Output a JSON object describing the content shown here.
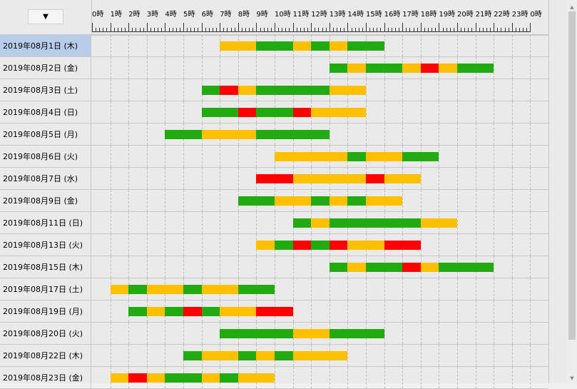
{
  "header": {
    "dropdown_icon": "▼",
    "hour_labels": [
      "0時",
      "1時",
      "2時",
      "3時",
      "4時",
      "5時",
      "6時",
      "7時",
      "8時",
      "9時",
      "10時",
      "11時",
      "12時",
      "13時",
      "14時",
      "15時",
      "16時",
      "17時",
      "18時",
      "19時",
      "20時",
      "21時",
      "22時",
      "23時",
      "0時"
    ]
  },
  "colors": {
    "G": "#22aa11",
    "Y": "#ffc000",
    "R": "#ff0000",
    "selected_row": "#b8cde9"
  },
  "rows": [
    {
      "label": "2019年08月1日 (木)",
      "selected": true,
      "segments": [
        [
          "Y",
          7,
          9
        ],
        [
          "G",
          9,
          11
        ],
        [
          "Y",
          11,
          12
        ],
        [
          "G",
          12,
          13
        ],
        [
          "Y",
          13,
          14
        ],
        [
          "G",
          14,
          16
        ]
      ]
    },
    {
      "label": "2019年08月2日 (金)",
      "segments": [
        [
          "G",
          13,
          14
        ],
        [
          "Y",
          14,
          15
        ],
        [
          "G",
          15,
          17
        ],
        [
          "Y",
          17,
          18
        ],
        [
          "R",
          18,
          19
        ],
        [
          "Y",
          19,
          20
        ],
        [
          "G",
          20,
          22
        ]
      ]
    },
    {
      "label": "2019年08月3日 (土)",
      "segments": [
        [
          "G",
          6,
          7
        ],
        [
          "R",
          7,
          8
        ],
        [
          "Y",
          8,
          9
        ],
        [
          "G",
          9,
          13
        ],
        [
          "Y",
          13,
          15
        ]
      ]
    },
    {
      "label": "2019年08月4日 (日)",
      "segments": [
        [
          "G",
          6,
          8
        ],
        [
          "R",
          8,
          9
        ],
        [
          "G",
          9,
          11
        ],
        [
          "R",
          11,
          12
        ],
        [
          "Y",
          12,
          15
        ]
      ]
    },
    {
      "label": "2019年08月5日 (月)",
      "segments": [
        [
          "G",
          4,
          6
        ],
        [
          "Y",
          6,
          9
        ],
        [
          "G",
          9,
          13
        ]
      ]
    },
    {
      "label": "2019年08月6日 (火)",
      "segments": [
        [
          "Y",
          10,
          14
        ],
        [
          "G",
          14,
          15
        ],
        [
          "Y",
          15,
          17
        ],
        [
          "G",
          17,
          19
        ]
      ]
    },
    {
      "label": "2019年08月7日 (水)",
      "segments": [
        [
          "R",
          9,
          11
        ],
        [
          "Y",
          11,
          15
        ],
        [
          "R",
          15,
          16
        ],
        [
          "Y",
          16,
          18
        ]
      ]
    },
    {
      "label": "2019年08月9日 (金)",
      "segments": [
        [
          "G",
          8,
          10
        ],
        [
          "Y",
          10,
          12
        ],
        [
          "G",
          12,
          13
        ],
        [
          "Y",
          13,
          14
        ],
        [
          "G",
          14,
          15
        ],
        [
          "Y",
          15,
          17
        ]
      ]
    },
    {
      "label": "2019年08月11日 (日)",
      "segments": [
        [
          "G",
          11,
          12
        ],
        [
          "Y",
          12,
          13
        ],
        [
          "G",
          13,
          18
        ],
        [
          "Y",
          18,
          20
        ]
      ]
    },
    {
      "label": "2019年08月13日 (火)",
      "segments": [
        [
          "Y",
          9,
          10
        ],
        [
          "G",
          10,
          11
        ],
        [
          "R",
          11,
          12
        ],
        [
          "G",
          12,
          13
        ],
        [
          "R",
          13,
          14
        ],
        [
          "Y",
          14,
          16
        ],
        [
          "R",
          16,
          18
        ]
      ]
    },
    {
      "label": "2019年08月15日 (木)",
      "segments": [
        [
          "G",
          13,
          14
        ],
        [
          "Y",
          14,
          15
        ],
        [
          "G",
          15,
          17
        ],
        [
          "R",
          17,
          18
        ],
        [
          "Y",
          18,
          19
        ],
        [
          "G",
          19,
          22
        ]
      ]
    },
    {
      "label": "2019年08月17日 (土)",
      "segments": [
        [
          "Y",
          1,
          2
        ],
        [
          "G",
          2,
          3
        ],
        [
          "Y",
          3,
          5
        ],
        [
          "G",
          5,
          6
        ],
        [
          "Y",
          6,
          8
        ],
        [
          "G",
          8,
          10
        ]
      ]
    },
    {
      "label": "2019年08月19日 (月)",
      "segments": [
        [
          "G",
          2,
          3
        ],
        [
          "Y",
          3,
          4
        ],
        [
          "G",
          4,
          5
        ],
        [
          "R",
          5,
          6
        ],
        [
          "G",
          6,
          7
        ],
        [
          "Y",
          7,
          9
        ],
        [
          "R",
          9,
          11
        ]
      ]
    },
    {
      "label": "2019年08月20日 (火)",
      "segments": [
        [
          "G",
          7,
          11
        ],
        [
          "Y",
          11,
          13
        ],
        [
          "G",
          13,
          16
        ]
      ]
    },
    {
      "label": "2019年08月22日 (木)",
      "segments": [
        [
          "G",
          5,
          6
        ],
        [
          "Y",
          6,
          8
        ],
        [
          "G",
          8,
          9
        ],
        [
          "Y",
          9,
          10
        ],
        [
          "G",
          10,
          11
        ],
        [
          "Y",
          11,
          14
        ]
      ]
    },
    {
      "label": "2019年08月23日 (金)",
      "segments": [
        [
          "Y",
          1,
          2
        ],
        [
          "R",
          2,
          3
        ],
        [
          "Y",
          3,
          4
        ],
        [
          "G",
          4,
          6
        ],
        [
          "Y",
          6,
          7
        ],
        [
          "G",
          7,
          8
        ],
        [
          "Y",
          8,
          10
        ]
      ]
    }
  ],
  "scrollbar": {
    "up_icon": "▲",
    "down_icon": "▼"
  }
}
